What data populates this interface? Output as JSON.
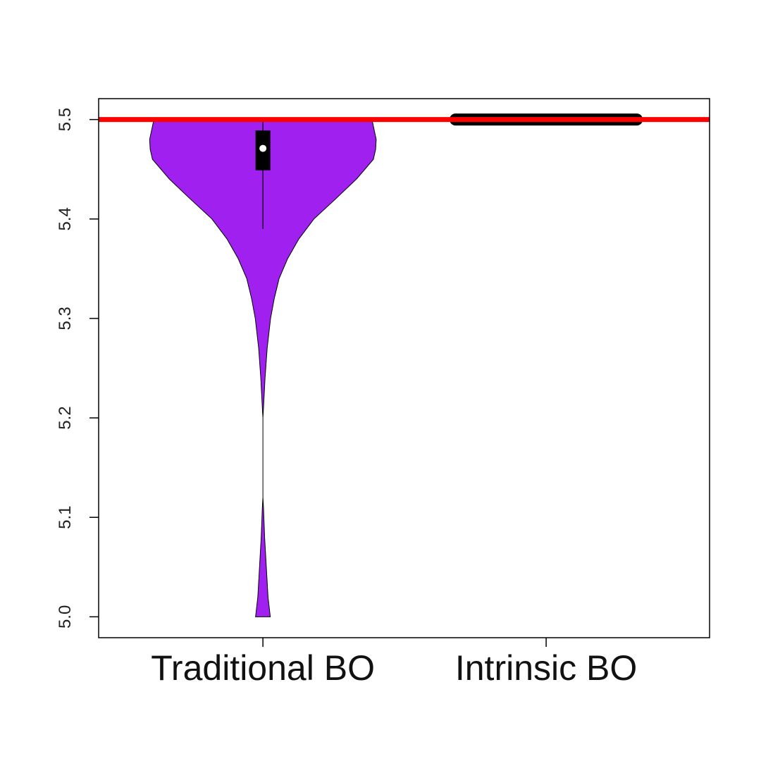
{
  "chart_data": {
    "type": "violin",
    "categories": [
      "Traditional BO",
      "Intrinsic BO"
    ],
    "xlim": [
      0.42,
      2.577
    ],
    "ylim": [
      4.979,
      5.521
    ],
    "yticks": [
      {
        "value": 5.0,
        "label": "5.0"
      },
      5.1,
      5.2,
      5.3,
      5.4,
      5.5
    ],
    "hline": {
      "value": 5.5,
      "color": "#ff0000"
    },
    "series": [
      {
        "color": "#a020f0",
        "density": {
          "y": [
            5.5,
            5.48,
            5.47,
            5.46,
            5.44,
            5.42,
            5.4,
            5.38,
            5.36,
            5.34,
            5.32,
            5.3,
            5.27,
            5.24,
            5.21,
            5.2,
            5.12,
            5.11,
            5.08,
            5.05,
            5.02,
            5.0
          ],
          "width": [
            0.385,
            0.4,
            0.398,
            0.39,
            0.33,
            0.256,
            0.18,
            0.127,
            0.087,
            0.057,
            0.04,
            0.027,
            0.015,
            0.0075,
            0.002,
            0,
            0,
            0.002,
            0.006,
            0.012,
            0.018,
            0.026
          ]
        },
        "whisker_low": 5.39,
        "q1": 5.449,
        "median": 5.471,
        "q3": 5.489,
        "whisker_high": 5.5
      },
      {
        "color": "#000000",
        "density": {
          "y": [
            5.5
          ],
          "width": [
            0.32
          ]
        }
      }
    ]
  }
}
